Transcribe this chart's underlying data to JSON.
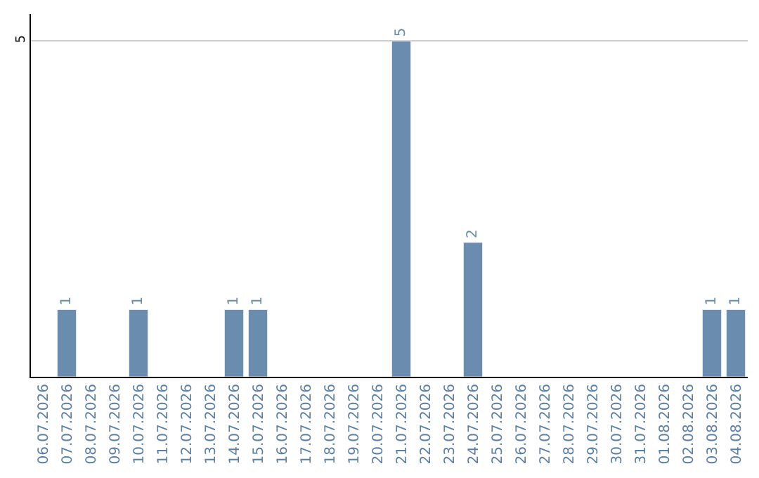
{
  "chart_data": {
    "type": "bar",
    "categories": [
      "06.07.2026",
      "07.07.2026",
      "08.07.2026",
      "09.07.2026",
      "10.07.2026",
      "11.07.2026",
      "12.07.2026",
      "13.07.2026",
      "14.07.2026",
      "15.07.2026",
      "16.07.2026",
      "17.07.2026",
      "18.07.2026",
      "19.07.2026",
      "20.07.2026",
      "21.07.2026",
      "22.07.2026",
      "23.07.2026",
      "24.07.2026",
      "25.07.2026",
      "26.07.2026",
      "27.07.2026",
      "28.07.2026",
      "29.07.2026",
      "30.07.2026",
      "31.07.2026",
      "01.08.2026",
      "02.08.2026",
      "03.08.2026",
      "04.08.2026"
    ],
    "values": [
      null,
      1,
      null,
      null,
      1,
      null,
      null,
      null,
      1,
      1,
      null,
      null,
      null,
      null,
      null,
      5,
      null,
      null,
      2,
      null,
      null,
      null,
      null,
      null,
      null,
      null,
      null,
      null,
      1,
      1
    ],
    "color": "#6a8caf",
    "ylim": [
      0,
      5.4
    ],
    "yticks": [
      5
    ],
    "grid": "y",
    "data_labels": true,
    "legend": false
  }
}
